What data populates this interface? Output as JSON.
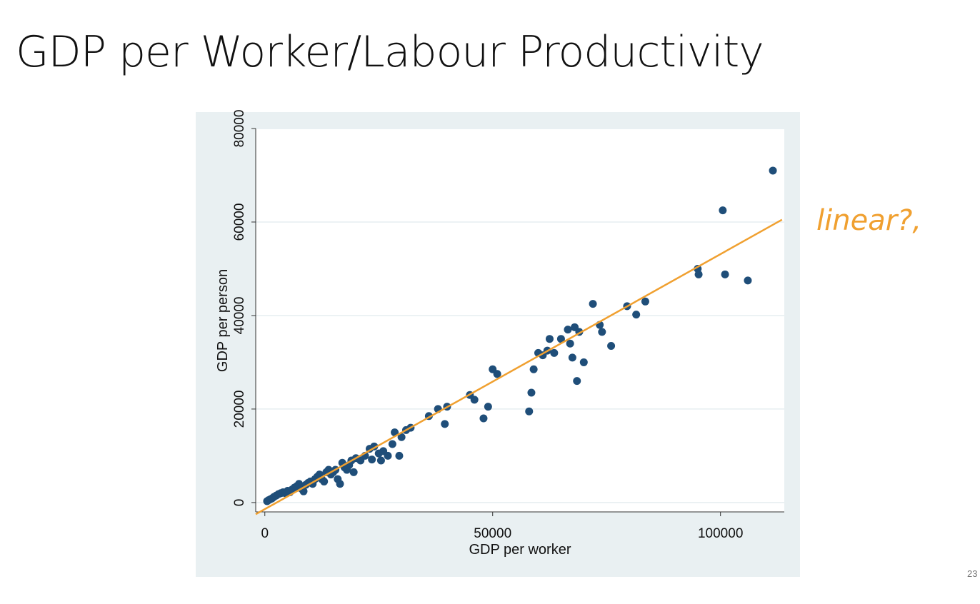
{
  "slide": {
    "title": "GDP per Worker/Labour Productivity",
    "page_number": "23",
    "annotation": "linear?,"
  },
  "colors": {
    "point": "#1f4e79",
    "fit_line": "#f0a030",
    "outer_bg": "#e9f0f2",
    "plot_bg": "#ffffff",
    "grid": "#e6eef1",
    "annotation": "#f0a030"
  },
  "chart_data": {
    "type": "scatter",
    "title": "",
    "xlabel": "GDP per worker",
    "ylabel": "GDP per person",
    "xlim": [
      -2000,
      114000
    ],
    "ylim": [
      -2000,
      80000
    ],
    "xticks": [
      0,
      50000,
      100000
    ],
    "yticks": [
      0,
      20000,
      40000,
      60000,
      80000
    ],
    "grid": true,
    "legend": "none",
    "points": [
      [
        500,
        300
      ],
      [
        800,
        500
      ],
      [
        1200,
        700
      ],
      [
        1600,
        900
      ],
      [
        2000,
        1200
      ],
      [
        2500,
        1500
      ],
      [
        3000,
        1800
      ],
      [
        3500,
        2000
      ],
      [
        4000,
        2200
      ],
      [
        4500,
        2000
      ],
      [
        5000,
        2500
      ],
      [
        5500,
        2200
      ],
      [
        6000,
        2800
      ],
      [
        6500,
        3200
      ],
      [
        7000,
        3500
      ],
      [
        7500,
        4000
      ],
      [
        8000,
        3000
      ],
      [
        8500,
        2400
      ],
      [
        9000,
        3800
      ],
      [
        9500,
        4200
      ],
      [
        10000,
        4500
      ],
      [
        10500,
        4000
      ],
      [
        11000,
        5000
      ],
      [
        11500,
        5500
      ],
      [
        12000,
        6000
      ],
      [
        12500,
        5000
      ],
      [
        13000,
        4500
      ],
      [
        13500,
        6500
      ],
      [
        14000,
        7000
      ],
      [
        14500,
        6000
      ],
      [
        15000,
        6500
      ],
      [
        15500,
        7000
      ],
      [
        16000,
        5000
      ],
      [
        16500,
        4000
      ],
      [
        17000,
        8500
      ],
      [
        17500,
        7500
      ],
      [
        18000,
        7000
      ],
      [
        18500,
        8000
      ],
      [
        19000,
        9000
      ],
      [
        19500,
        6500
      ],
      [
        20000,
        9500
      ],
      [
        21000,
        9000
      ],
      [
        22000,
        10000
      ],
      [
        23000,
        11500
      ],
      [
        23500,
        9200
      ],
      [
        24000,
        12000
      ],
      [
        25000,
        10500
      ],
      [
        25500,
        9000
      ],
      [
        26000,
        11000
      ],
      [
        27000,
        10000
      ],
      [
        28000,
        12500
      ],
      [
        28500,
        15000
      ],
      [
        29500,
        10000
      ],
      [
        30000,
        14000
      ],
      [
        31000,
        15500
      ],
      [
        32000,
        16000
      ],
      [
        36000,
        18500
      ],
      [
        38000,
        20000
      ],
      [
        39500,
        16800
      ],
      [
        40000,
        20500
      ],
      [
        45000,
        23000
      ],
      [
        46000,
        22000
      ],
      [
        48000,
        18000
      ],
      [
        49000,
        20500
      ],
      [
        50000,
        28500
      ],
      [
        51000,
        27500
      ],
      [
        58000,
        19500
      ],
      [
        58500,
        23500
      ],
      [
        59000,
        28500
      ],
      [
        60000,
        32000
      ],
      [
        61000,
        31500
      ],
      [
        62000,
        32500
      ],
      [
        62500,
        35000
      ],
      [
        63500,
        32000
      ],
      [
        65000,
        35000
      ],
      [
        66500,
        37000
      ],
      [
        67000,
        34000
      ],
      [
        67500,
        31000
      ],
      [
        68000,
        37500
      ],
      [
        68500,
        26000
      ],
      [
        69000,
        36500
      ],
      [
        70000,
        30000
      ],
      [
        72000,
        42500
      ],
      [
        73500,
        38000
      ],
      [
        74000,
        36500
      ],
      [
        76000,
        33500
      ],
      [
        79500,
        42000
      ],
      [
        81500,
        40200
      ],
      [
        83500,
        43000
      ],
      [
        95000,
        50000
      ],
      [
        95200,
        48800
      ],
      [
        100500,
        62500
      ],
      [
        101000,
        48800
      ],
      [
        106000,
        47500
      ],
      [
        111500,
        71000
      ]
    ],
    "fit_line": {
      "x": [
        -2000,
        113500
      ],
      "y": [
        -2500,
        60500
      ]
    }
  }
}
